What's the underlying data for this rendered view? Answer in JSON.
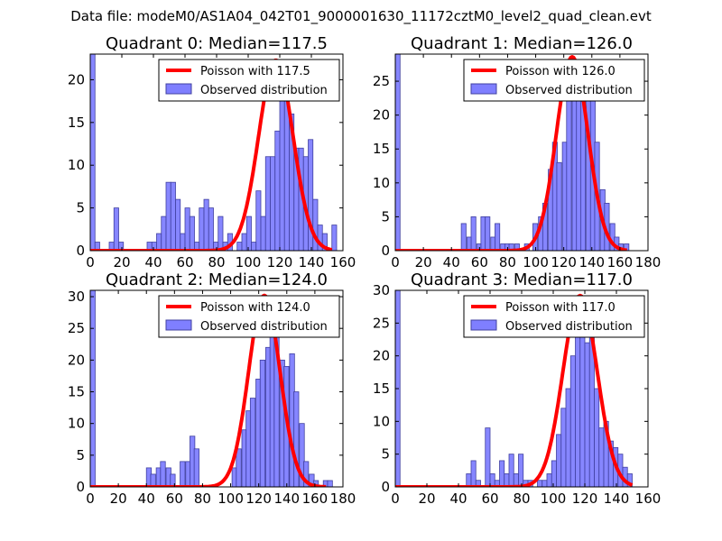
{
  "figure_title": "Data file: modeM0/AS1A04_042T01_9000001630_11172cztM0_level2_quad_clean.evt",
  "colors": {
    "observed_fill": "#7f7fff",
    "observed_edge": "#4040a0",
    "poisson": "#ff0000"
  },
  "chart_data": [
    {
      "type": "bar",
      "title": "Quadrant 0: Median=117.5",
      "xlim": [
        0,
        160
      ],
      "ylim": [
        0,
        23
      ],
      "xticks": [
        "0",
        "20",
        "40",
        "60",
        "80",
        "100",
        "120",
        "140",
        "160"
      ],
      "yticks": [
        0,
        5,
        10,
        15,
        20
      ],
      "bin_width": 3,
      "observed": [
        [
          0,
          23
        ],
        [
          3,
          1
        ],
        [
          12,
          1
        ],
        [
          15,
          5
        ],
        [
          18,
          1
        ],
        [
          36,
          1
        ],
        [
          39,
          1
        ],
        [
          42,
          2
        ],
        [
          45,
          4
        ],
        [
          48,
          8
        ],
        [
          51,
          8
        ],
        [
          54,
          6
        ],
        [
          57,
          2
        ],
        [
          60,
          5
        ],
        [
          63,
          4
        ],
        [
          66,
          1
        ],
        [
          69,
          5
        ],
        [
          72,
          6
        ],
        [
          75,
          5
        ],
        [
          78,
          1
        ],
        [
          81,
          4
        ],
        [
          84,
          1
        ],
        [
          87,
          2
        ],
        [
          93,
          1
        ],
        [
          96,
          2
        ],
        [
          99,
          4
        ],
        [
          102,
          1
        ],
        [
          105,
          7
        ],
        [
          108,
          4
        ],
        [
          111,
          11
        ],
        [
          114,
          11
        ],
        [
          117,
          14
        ],
        [
          120,
          19
        ],
        [
          123,
          18
        ],
        [
          126,
          16
        ],
        [
          129,
          12
        ],
        [
          132,
          12
        ],
        [
          135,
          11
        ],
        [
          138,
          13
        ],
        [
          141,
          6
        ],
        [
          144,
          3
        ],
        [
          147,
          2
        ],
        [
          150,
          0
        ],
        [
          153,
          3
        ]
      ],
      "poisson": {
        "mean": 117.5,
        "peak": 22.3,
        "x_range": [
          0,
          153
        ]
      },
      "legend": {
        "poisson_label": "Poisson with 117.5",
        "observed_label": "Observed distribution"
      }
    },
    {
      "type": "bar",
      "title": "Quadrant 1: Median=126.0",
      "xlim": [
        0,
        180
      ],
      "ylim": [
        0,
        29
      ],
      "xticks": [
        "0",
        "20",
        "40",
        "60",
        "80",
        "100",
        "120",
        "140",
        "160",
        "180"
      ],
      "yticks": [
        0,
        5,
        10,
        15,
        20,
        25
      ],
      "bin_width": 3.4,
      "observed": [
        [
          0,
          29
        ],
        [
          47,
          4
        ],
        [
          51,
          2
        ],
        [
          54,
          5
        ],
        [
          58,
          1
        ],
        [
          61,
          5
        ],
        [
          64,
          5
        ],
        [
          68,
          2
        ],
        [
          71,
          4
        ],
        [
          75,
          1
        ],
        [
          78,
          1
        ],
        [
          81,
          1
        ],
        [
          85,
          1
        ],
        [
          92,
          1
        ],
        [
          98,
          4
        ],
        [
          102,
          5
        ],
        [
          105,
          7
        ],
        [
          109,
          12
        ],
        [
          112,
          16
        ],
        [
          115,
          13
        ],
        [
          119,
          16
        ],
        [
          122,
          24
        ],
        [
          126,
          28
        ],
        [
          129,
          24
        ],
        [
          132,
          22
        ],
        [
          136,
          23
        ],
        [
          139,
          27
        ],
        [
          142,
          16
        ],
        [
          146,
          9
        ],
        [
          149,
          7
        ],
        [
          153,
          4
        ],
        [
          156,
          2
        ],
        [
          159,
          1
        ],
        [
          163,
          1
        ]
      ],
      "poisson": {
        "mean": 126.0,
        "peak": 28.6,
        "x_range": [
          0,
          165
        ]
      },
      "legend": {
        "poisson_label": "Poisson with 126.0",
        "observed_label": "Observed distribution"
      }
    },
    {
      "type": "bar",
      "title": "Quadrant 2: Median=124.0",
      "xlim": [
        0,
        180
      ],
      "ylim": [
        0,
        31
      ],
      "xticks": [
        "0",
        "20",
        "40",
        "60",
        "80",
        "100",
        "120",
        "140",
        "160",
        "180"
      ],
      "yticks": [
        0,
        5,
        10,
        15,
        20,
        25,
        30
      ],
      "bin_width": 3.5,
      "observed": [
        [
          0,
          31
        ],
        [
          40,
          3
        ],
        [
          43,
          2
        ],
        [
          47,
          3
        ],
        [
          50,
          4
        ],
        [
          54,
          3
        ],
        [
          57,
          2
        ],
        [
          64,
          4
        ],
        [
          68,
          4
        ],
        [
          71,
          8
        ],
        [
          74,
          6
        ],
        [
          101,
          3
        ],
        [
          104,
          6
        ],
        [
          108,
          9
        ],
        [
          111,
          12
        ],
        [
          114,
          14
        ],
        [
          118,
          17
        ],
        [
          121,
          20
        ],
        [
          125,
          22
        ],
        [
          128,
          27
        ],
        [
          131,
          25
        ],
        [
          135,
          20
        ],
        [
          138,
          19
        ],
        [
          142,
          21
        ],
        [
          145,
          15
        ],
        [
          149,
          10
        ],
        [
          152,
          4
        ],
        [
          156,
          2
        ],
        [
          159,
          1
        ],
        [
          166,
          1
        ],
        [
          169,
          1
        ]
      ],
      "poisson": {
        "mean": 124.0,
        "peak": 30.2,
        "x_range": [
          0,
          168
        ]
      },
      "legend": {
        "poisson_label": "Poisson with 124.0",
        "observed_label": "Observed distribution"
      }
    },
    {
      "type": "bar",
      "title": "Quadrant 3: Median=117.0",
      "xlim": [
        0,
        160
      ],
      "ylim": [
        0,
        30
      ],
      "xticks": [
        "0",
        "20",
        "40",
        "60",
        "80",
        "100",
        "120",
        "140",
        "160"
      ],
      "yticks": [
        0,
        5,
        10,
        15,
        20,
        25,
        30
      ],
      "bin_width": 3,
      "observed": [
        [
          0,
          30
        ],
        [
          45,
          2
        ],
        [
          48,
          4
        ],
        [
          51,
          1
        ],
        [
          57,
          9
        ],
        [
          60,
          2
        ],
        [
          63,
          1
        ],
        [
          66,
          4
        ],
        [
          69,
          2
        ],
        [
          72,
          5
        ],
        [
          75,
          2
        ],
        [
          78,
          5
        ],
        [
          81,
          1
        ],
        [
          84,
          1
        ],
        [
          90,
          1
        ],
        [
          93,
          1
        ],
        [
          96,
          2
        ],
        [
          99,
          4
        ],
        [
          102,
          8
        ],
        [
          105,
          12
        ],
        [
          108,
          15
        ],
        [
          111,
          20
        ],
        [
          114,
          23
        ],
        [
          117,
          27
        ],
        [
          120,
          22
        ],
        [
          123,
          24
        ],
        [
          126,
          15
        ],
        [
          129,
          9
        ],
        [
          132,
          10
        ],
        [
          135,
          7
        ],
        [
          138,
          6
        ],
        [
          141,
          5
        ],
        [
          144,
          3
        ],
        [
          147,
          2
        ]
      ],
      "poisson": {
        "mean": 117.0,
        "peak": 29.2,
        "x_range": [
          0,
          150
        ]
      },
      "legend": {
        "poisson_label": "Poisson with 117.0",
        "observed_label": "Observed distribution"
      }
    }
  ]
}
